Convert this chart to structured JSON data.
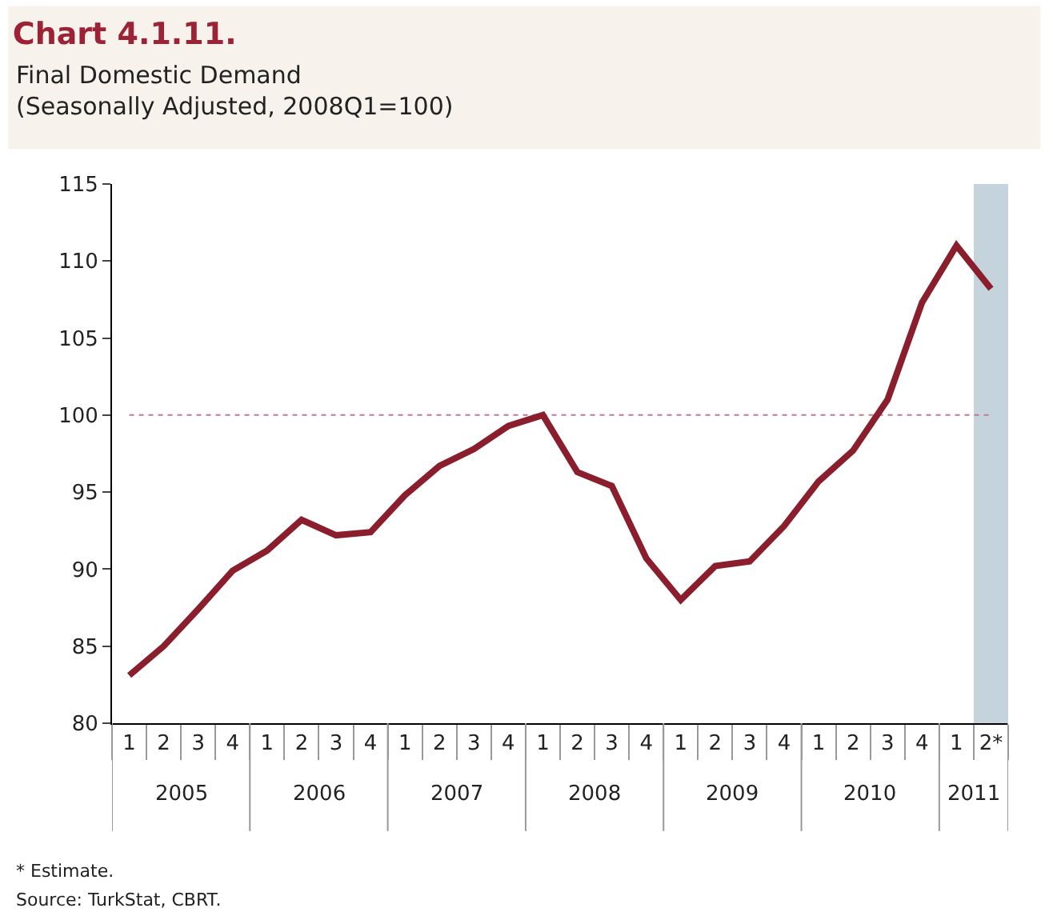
{
  "chart_data": {
    "type": "line",
    "title": "Chart 4.1.11.",
    "subtitle": "Final Domestic Demand\n(Seasonally Adjusted, 2008Q1=100)",
    "categories": [
      "1",
      "2",
      "3",
      "4",
      "1",
      "2",
      "3",
      "4",
      "1",
      "2",
      "3",
      "4",
      "1",
      "2",
      "3",
      "4",
      "1",
      "2",
      "3",
      "4",
      "1",
      "2",
      "3",
      "4",
      "1",
      "2*"
    ],
    "series": [
      {
        "color": "#8b1e2d",
        "values": [
          83.1,
          85.0,
          87.4,
          89.9,
          91.2,
          93.2,
          92.2,
          92.4,
          94.8,
          96.7,
          97.8,
          99.3,
          100,
          96.3,
          95.4,
          90.7,
          88.0,
          90.2,
          90.5,
          92.8,
          95.7,
          97.7,
          101.0,
          107.3,
          111.0,
          108.2
        ]
      }
    ],
    "ylim": [
      80,
      115
    ],
    "yticks": [
      80,
      85,
      90,
      95,
      100,
      105,
      110,
      115
    ],
    "grid": false,
    "marker": "none",
    "line_style": "solid",
    "ref_lines": [
      {
        "axis": "y",
        "value": 100,
        "color": "#c07a8a",
        "line_style": "dotted"
      }
    ],
    "bands": [
      {
        "axis": "x",
        "from": "2*",
        "to": "2*",
        "color": "#c5d3dc"
      }
    ],
    "annotations": [
      "2005",
      "2006",
      "2007",
      "2008",
      "2009",
      "2010",
      "2011",
      "* Estimate.",
      "Source: TurkStat, CBRT."
    ]
  }
}
